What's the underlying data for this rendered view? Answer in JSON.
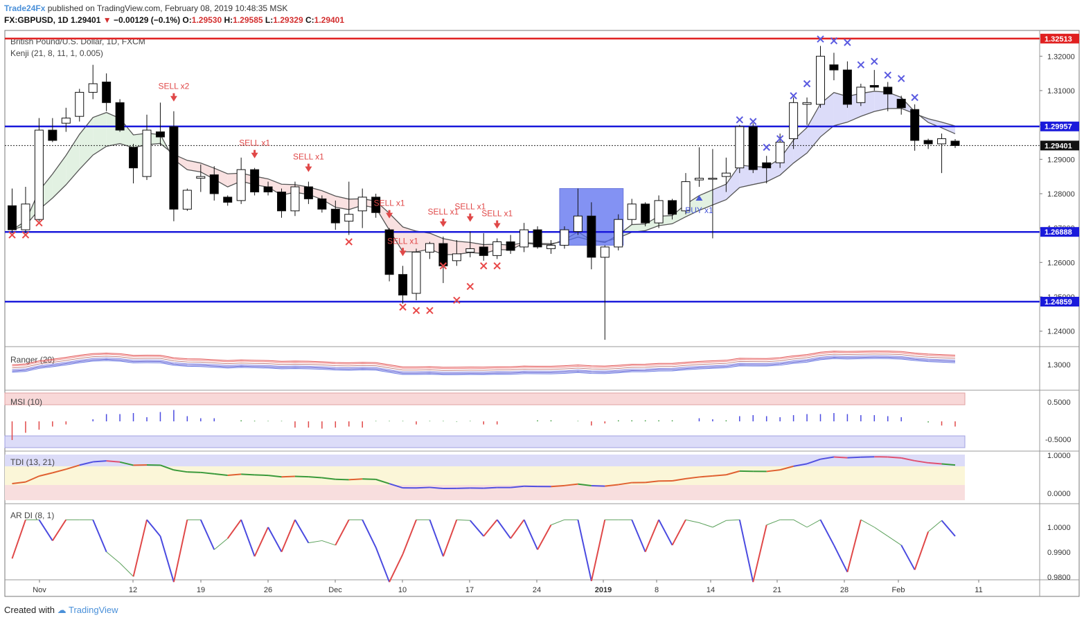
{
  "header": {
    "publisher": "Trade24Fx",
    "published_text": "published on TradingView.com, February 08, 2019 10:48:35 MSK",
    "symbol": "FX:GBPUSD, 1D",
    "last": "1.29401",
    "change": "−0.00129 (−0.1%)",
    "o_label": "O:",
    "o": "1.29530",
    "h_label": "H:",
    "h": "1.29585",
    "l_label": "L:",
    "l": "1.29329",
    "c_label": "C:",
    "c": "1.29401"
  },
  "footer": {
    "created_with": "Created with",
    "tv": "TradingView"
  },
  "colors": {
    "up": "#ffffff",
    "down": "#000000",
    "level": "#1a1adb",
    "resistance": "#e02020",
    "sell": "#e04848",
    "buy": "#4a5ad8",
    "cross_red": "#e84848",
    "cross_blue": "#5a5ae0",
    "zone": "#5a6ef0"
  },
  "chart_data": [
    {
      "type": "candlestick",
      "title": "British Pound/U.S. Dollar, 1D, FXCM",
      "indicator": "Kenji (21, 8, 11, 1, 0.005)",
      "x_ticks": [
        "Nov",
        "12",
        "19",
        "26",
        "Dec",
        "10",
        "17",
        "24",
        "2019",
        "8",
        "14",
        "21",
        "28",
        "Feb",
        "11"
      ],
      "y_ticks": [
        "1.32000",
        "1.31000",
        "1.30000",
        "1.29000",
        "1.28000",
        "1.27000",
        "1.26000",
        "1.25000",
        "1.24000"
      ],
      "ylim": [
        1.2355,
        1.3275
      ],
      "ohlc": [
        [
          1.2765,
          1.2815,
          1.2685,
          1.2695
        ],
        [
          1.2695,
          1.282,
          1.2685,
          1.277
        ],
        [
          1.2725,
          1.302,
          1.272,
          1.2985
        ],
        [
          1.2985,
          1.302,
          1.295,
          1.2955
        ],
        [
          1.3005,
          1.305,
          1.298,
          1.302
        ],
        [
          1.3025,
          1.3105,
          1.301,
          1.3095
        ],
        [
          1.3095,
          1.3175,
          1.3075,
          1.312
        ],
        [
          1.3125,
          1.315,
          1.304,
          1.3065
        ],
        [
          1.3065,
          1.3075,
          1.298,
          1.2985
        ],
        [
          1.2935,
          1.2945,
          1.283,
          1.2875
        ],
        [
          1.285,
          1.303,
          1.284,
          1.2985
        ],
        [
          1.298,
          1.3065,
          1.294,
          1.2965
        ],
        [
          1.2995,
          1.304,
          1.272,
          1.2755
        ],
        [
          1.2755,
          1.2815,
          1.275,
          1.281
        ],
        [
          1.2845,
          1.2885,
          1.2805,
          1.285
        ],
        [
          1.2855,
          1.288,
          1.278,
          1.28
        ],
        [
          1.279,
          1.2795,
          1.2765,
          1.2775
        ],
        [
          1.278,
          1.2905,
          1.277,
          1.287
        ],
        [
          1.287,
          1.2875,
          1.2795,
          1.2805
        ],
        [
          1.282,
          1.2835,
          1.2795,
          1.2805
        ],
        [
          1.2805,
          1.2815,
          1.273,
          1.275
        ],
        [
          1.275,
          1.2835,
          1.2735,
          1.282
        ],
        [
          1.282,
          1.2835,
          1.277,
          1.2785
        ],
        [
          1.2785,
          1.2795,
          1.2745,
          1.2755
        ],
        [
          1.2755,
          1.278,
          1.2695,
          1.2715
        ],
        [
          1.272,
          1.2835,
          1.268,
          1.274
        ],
        [
          1.275,
          1.2815,
          1.27,
          1.279
        ],
        [
          1.279,
          1.28,
          1.273,
          1.2745
        ],
        [
          1.2695,
          1.27,
          1.2545,
          1.2565
        ],
        [
          1.2565,
          1.259,
          1.248,
          1.2505
        ],
        [
          1.251,
          1.264,
          1.249,
          1.263
        ],
        [
          1.263,
          1.266,
          1.261,
          1.2655
        ],
        [
          1.2655,
          1.2675,
          1.254,
          1.259
        ],
        [
          1.2605,
          1.2665,
          1.259,
          1.2625
        ],
        [
          1.263,
          1.269,
          1.2615,
          1.264
        ],
        [
          1.2645,
          1.2685,
          1.2605,
          1.262
        ],
        [
          1.262,
          1.267,
          1.261,
          1.266
        ],
        [
          1.266,
          1.268,
          1.2625,
          1.2635
        ],
        [
          1.2645,
          1.2715,
          1.263,
          1.2695
        ],
        [
          1.2695,
          1.2705,
          1.264,
          1.2645
        ],
        [
          1.264,
          1.2665,
          1.2625,
          1.265
        ],
        [
          1.265,
          1.2705,
          1.264,
          1.2695
        ],
        [
          1.269,
          1.2815,
          1.268,
          1.2735
        ],
        [
          1.2735,
          1.2775,
          1.258,
          1.2615
        ],
        [
          1.2615,
          1.265,
          1.2375,
          1.2645
        ],
        [
          1.2645,
          1.274,
          1.2635,
          1.2725
        ],
        [
          1.2725,
          1.2785,
          1.271,
          1.277
        ],
        [
          1.277,
          1.2775,
          1.2705,
          1.2715
        ],
        [
          1.2715,
          1.2795,
          1.27,
          1.278
        ],
        [
          1.278,
          1.2785,
          1.2725,
          1.274
        ],
        [
          1.275,
          1.286,
          1.274,
          1.2835
        ],
        [
          1.284,
          1.2935,
          1.282,
          1.2845
        ],
        [
          1.2845,
          1.293,
          1.267,
          1.2845
        ],
        [
          1.285,
          1.2905,
          1.2805,
          1.286
        ],
        [
          1.2875,
          1.3,
          1.286,
          1.2995
        ],
        [
          1.2995,
          1.3005,
          1.286,
          1.287
        ],
        [
          1.289,
          1.291,
          1.283,
          1.2875
        ],
        [
          1.289,
          1.2975,
          1.2875,
          1.295
        ],
        [
          1.296,
          1.308,
          1.293,
          1.3065
        ],
        [
          1.306,
          1.308,
          1.3,
          1.3065
        ],
        [
          1.306,
          1.323,
          1.305,
          1.32
        ],
        [
          1.3175,
          1.321,
          1.313,
          1.316
        ],
        [
          1.316,
          1.3185,
          1.305,
          1.306
        ],
        [
          1.3065,
          1.312,
          1.3055,
          1.311
        ],
        [
          1.3115,
          1.316,
          1.31,
          1.311
        ],
        [
          1.311,
          1.3125,
          1.304,
          1.309
        ],
        [
          1.3075,
          1.3085,
          1.303,
          1.305
        ],
        [
          1.3045,
          1.306,
          1.2925,
          1.2955
        ],
        [
          1.2955,
          1.296,
          1.293,
          1.2945
        ],
        [
          1.2945,
          1.2975,
          1.286,
          1.296
        ],
        [
          1.2953,
          1.2959,
          1.2933,
          1.294
        ]
      ],
      "horizontal_levels": [
        {
          "value": 1.32513,
          "label": "1.32513",
          "color": "red"
        },
        {
          "value": 1.29957,
          "label": "1.29957",
          "color": "blue"
        },
        {
          "value": 1.26888,
          "label": "1.26888",
          "color": "blue"
        },
        {
          "value": 1.24859,
          "label": "1.24859",
          "color": "blue"
        }
      ],
      "last_price": {
        "value": 1.29401,
        "label": "1.29401"
      },
      "signals": [
        {
          "bar": 12,
          "label": "SELL x2",
          "side": "sell"
        },
        {
          "bar": 18,
          "label": "SELL x1",
          "side": "sell"
        },
        {
          "bar": 22,
          "label": "SELL x1",
          "side": "sell"
        },
        {
          "bar": 28,
          "label": "SELL x1",
          "side": "sell"
        },
        {
          "bar": 29,
          "label": "SELL x1",
          "side": "sell"
        },
        {
          "bar": 32,
          "label": "SELL x1",
          "side": "sell"
        },
        {
          "bar": 34,
          "label": "SELL x1",
          "side": "sell"
        },
        {
          "bar": 36,
          "label": "SELL x1",
          "side": "sell"
        },
        {
          "bar": 51,
          "label": "BUY x1",
          "side": "buy"
        }
      ],
      "x_markers_red": [
        [
          0,
          1.268
        ],
        [
          1,
          1.268
        ],
        [
          2,
          1.2715
        ],
        [
          25,
          1.266
        ],
        [
          29,
          1.247
        ],
        [
          30,
          1.246
        ],
        [
          31,
          1.246
        ],
        [
          32,
          1.259
        ],
        [
          33,
          1.249
        ],
        [
          34,
          1.253
        ],
        [
          35,
          1.259
        ],
        [
          36,
          1.259
        ]
      ],
      "x_markers_blue": [
        [
          54,
          1.3015
        ],
        [
          55,
          1.301
        ],
        [
          56,
          1.2935
        ],
        [
          57,
          1.296
        ],
        [
          58,
          1.3085
        ],
        [
          59,
          1.312
        ],
        [
          60,
          1.325
        ],
        [
          61,
          1.3245
        ],
        [
          62,
          1.324
        ],
        [
          63,
          1.3175
        ],
        [
          64,
          1.3185
        ],
        [
          65,
          1.3145
        ],
        [
          66,
          1.3135
        ],
        [
          67,
          1.308
        ]
      ]
    },
    {
      "type": "line",
      "title": "Ranger (20)",
      "y_ticks": [
        "1.3000"
      ]
    },
    {
      "type": "bar",
      "title": "MSI (10)",
      "y_ticks": [
        "0.5000",
        "-0.5000"
      ],
      "values": [
        -0.9,
        -0.55,
        -0.4,
        -0.25,
        -0.15,
        0,
        0.1,
        0.35,
        0.35,
        0.4,
        0.2,
        0.45,
        0.55,
        0.25,
        0.15,
        0.15,
        0,
        0.05,
        0.03,
        0.02,
        0.02,
        -0.3,
        -0.3,
        -0.35,
        -0.3,
        -0.25,
        -0.3,
        0.02,
        0.02,
        0.02,
        -0.15,
        0.02,
        0.02,
        -0.02,
        0.02,
        -0.15,
        -0.15,
        0,
        0,
        0.05,
        0.05,
        0,
        0.02,
        -0.2,
        -0.1,
        0.05,
        0.05,
        0.05,
        0.05,
        0.05,
        0,
        0.15,
        0.1,
        0.05,
        0.25,
        0.3,
        0.25,
        0.2,
        0.3,
        0.35,
        0.35,
        0.4,
        0.35,
        0.3,
        0.3,
        0.25,
        0.2,
        0,
        -0.05,
        -0.2,
        -0.25
      ]
    },
    {
      "type": "line",
      "title": "TDI (13, 21)",
      "y_ticks": [
        "1.0000",
        "0.0000"
      ]
    },
    {
      "type": "line",
      "title": "AR DI (8, 1)",
      "y_ticks": [
        "1.0000",
        "0.9900",
        "0.9800"
      ],
      "ylim": [
        0.9775,
        1.0045
      ]
    }
  ]
}
